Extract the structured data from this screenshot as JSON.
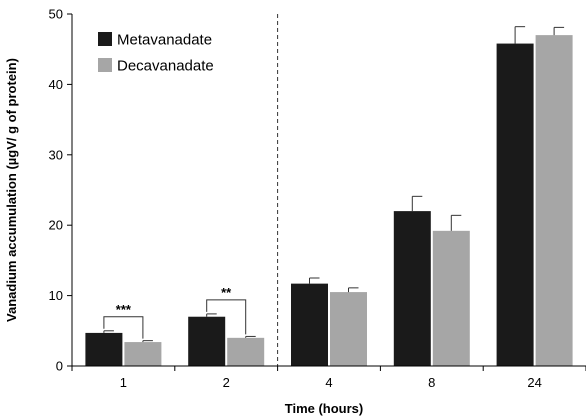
{
  "chart_data": {
    "type": "bar",
    "title": "",
    "xlabel": "Time (hours)",
    "ylabel": "Vanadium accumulation (µgV/ g of protein)",
    "categories": [
      "1",
      "2",
      "4",
      "8",
      "24"
    ],
    "ylim": [
      0,
      50
    ],
    "yticks": [
      0,
      10,
      20,
      30,
      40,
      50
    ],
    "grid": false,
    "legend_position": "top-left",
    "series": [
      {
        "name": "Metavanadate",
        "color": "#1a1a1a",
        "values": [
          4.7,
          7.0,
          11.7,
          22.0,
          45.8
        ],
        "errors": [
          0.3,
          0.4,
          0.8,
          2.1,
          2.4
        ]
      },
      {
        "name": "Decavanadate",
        "color": "#a6a6a6",
        "values": [
          3.4,
          4.0,
          10.5,
          19.2,
          47.0
        ],
        "errors": [
          0.2,
          0.2,
          0.6,
          2.2,
          1.1
        ]
      }
    ],
    "annotations": [
      {
        "text": "***",
        "category": "1"
      },
      {
        "text": "**",
        "category": "2"
      }
    ],
    "divider_after_category": "2"
  }
}
